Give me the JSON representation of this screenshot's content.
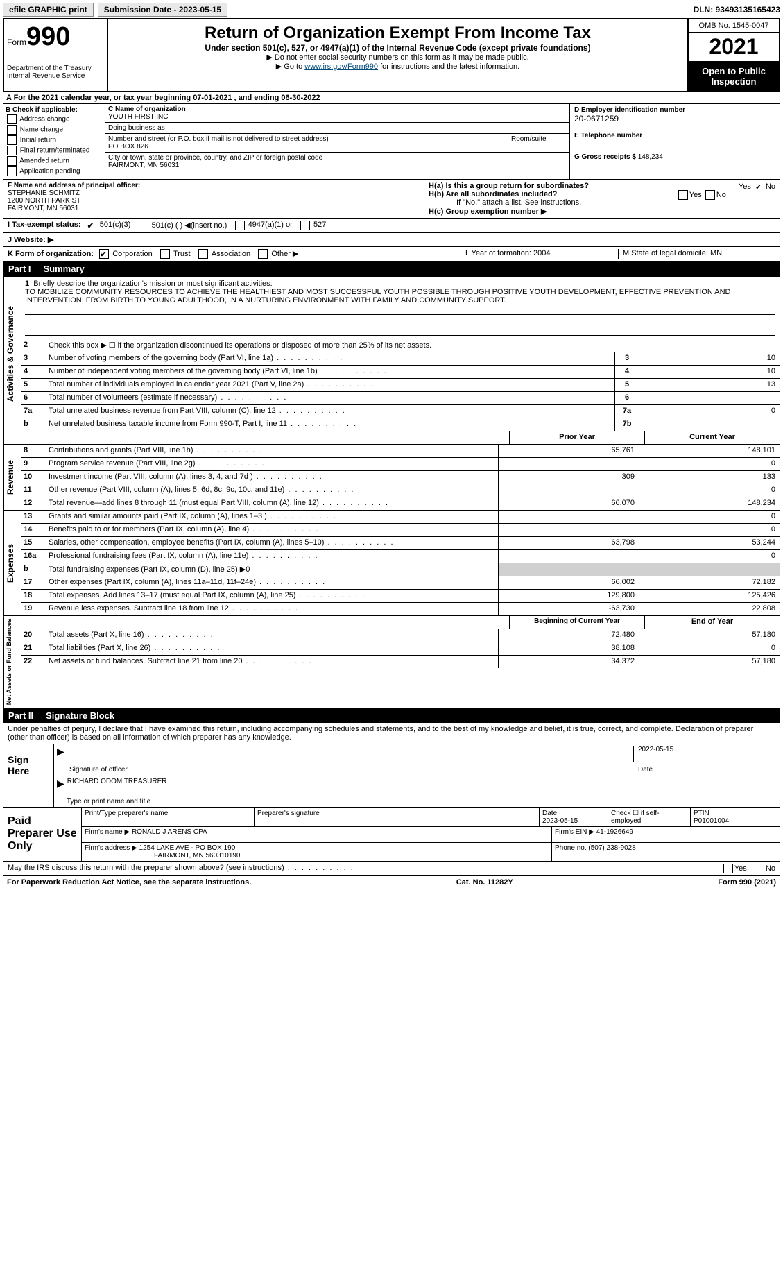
{
  "topbar": {
    "efile_label": "efile GRAPHIC print",
    "submission_label": "Submission Date - 2023-05-15",
    "dln": "DLN: 93493135165423"
  },
  "header": {
    "form_word": "Form",
    "form_number": "990",
    "dept": "Department of the Treasury",
    "irs": "Internal Revenue Service",
    "title": "Return of Organization Exempt From Income Tax",
    "subtitle": "Under section 501(c), 527, or 4947(a)(1) of the Internal Revenue Code (except private foundations)",
    "note1": "▶ Do not enter social security numbers on this form as it may be made public.",
    "note2_pre": "▶ Go to ",
    "note2_link": "www.irs.gov/Form990",
    "note2_post": " for instructions and the latest information.",
    "omb": "OMB No. 1545-0047",
    "year": "2021",
    "open": "Open to Public Inspection"
  },
  "section_a": "A For the 2021 calendar year, or tax year beginning 07-01-2021   , and ending 06-30-2022",
  "section_b": {
    "label": "B Check if applicable:",
    "items": [
      "Address change",
      "Name change",
      "Initial return",
      "Final return/terminated",
      "Amended return",
      "Application pending"
    ]
  },
  "section_c": {
    "name_label": "C Name of organization",
    "name": "YOUTH FIRST INC",
    "dba_label": "Doing business as",
    "dba": "",
    "addr_label": "Number and street (or P.O. box if mail is not delivered to street address)",
    "room_label": "Room/suite",
    "addr": "PO BOX 826",
    "city_label": "City or town, state or province, country, and ZIP or foreign postal code",
    "city": "FAIRMONT, MN  56031"
  },
  "section_d": {
    "label": "D Employer identification number",
    "ein": "20-0671259",
    "tel_label": "E Telephone number",
    "tel": "",
    "gross_label": "G Gross receipts $",
    "gross": "148,234"
  },
  "section_f": {
    "label": "F Name and address of principal officer:",
    "name": "STEPHANIE SCHMITZ",
    "addr1": "1200 NORTH PARK ST",
    "addr2": "FAIRMONT, MN  56031"
  },
  "section_h": {
    "a_label": "H(a)  Is this a group return for subordinates?",
    "a_yes": "Yes",
    "a_no": "No",
    "b_label": "H(b)  Are all subordinates included?",
    "b_yes": "Yes",
    "b_no": "No",
    "b_note": "If \"No,\" attach a list. See instructions.",
    "c_label": "H(c)  Group exemption number ▶"
  },
  "section_i": {
    "label": "I  Tax-exempt status:",
    "opt1": "501(c)(3)",
    "opt2": "501(c) (  ) ◀(insert no.)",
    "opt3": "4947(a)(1) or",
    "opt4": "527"
  },
  "section_j": "J  Website: ▶",
  "section_k": {
    "label": "K Form of organization:",
    "opts": [
      "Corporation",
      "Trust",
      "Association",
      "Other ▶"
    ]
  },
  "section_lm": {
    "l": "L Year of formation: 2004",
    "m": "M State of legal domicile: MN"
  },
  "part1": {
    "tag": "Part I",
    "title": "Summary"
  },
  "governance": {
    "side": "Activities & Governance",
    "l1_label": "Briefly describe the organization's mission or most significant activities:",
    "l1_text": "TO MOBILIZE COMMUNITY RESOURCES TO ACHIEVE THE HEALTHIEST AND MOST SUCCESSFUL YOUTH POSSIBLE THROUGH POSITIVE YOUTH DEVELOPMENT, EFFECTIVE PREVENTION AND INTERVENTION, FROM BIRTH TO YOUNG ADULTHOOD, IN A NURTURING ENVIRONMENT WITH FAMILY AND COMMUNITY SUPPORT.",
    "l2": "Check this box ▶ ☐ if the organization discontinued its operations or disposed of more than 25% of its net assets.",
    "rows": [
      {
        "n": "3",
        "d": "Number of voting members of the governing body (Part VI, line 1a)",
        "box": "3",
        "v": "10"
      },
      {
        "n": "4",
        "d": "Number of independent voting members of the governing body (Part VI, line 1b)",
        "box": "4",
        "v": "10"
      },
      {
        "n": "5",
        "d": "Total number of individuals employed in calendar year 2021 (Part V, line 2a)",
        "box": "5",
        "v": "13"
      },
      {
        "n": "6",
        "d": "Total number of volunteers (estimate if necessary)",
        "box": "6",
        "v": ""
      },
      {
        "n": "7a",
        "d": "Total unrelated business revenue from Part VIII, column (C), line 12",
        "box": "7a",
        "v": "0"
      },
      {
        "n": "b",
        "d": "Net unrelated business taxable income from Form 990-T, Part I, line 11",
        "box": "7b",
        "v": ""
      }
    ]
  },
  "yearhdr": {
    "prior": "Prior Year",
    "current": "Current Year"
  },
  "revenue": {
    "side": "Revenue",
    "rows": [
      {
        "n": "8",
        "d": "Contributions and grants (Part VIII, line 1h)",
        "p": "65,761",
        "c": "148,101"
      },
      {
        "n": "9",
        "d": "Program service revenue (Part VIII, line 2g)",
        "p": "",
        "c": "0"
      },
      {
        "n": "10",
        "d": "Investment income (Part VIII, column (A), lines 3, 4, and 7d )",
        "p": "309",
        "c": "133"
      },
      {
        "n": "11",
        "d": "Other revenue (Part VIII, column (A), lines 5, 6d, 8c, 9c, 10c, and 11e)",
        "p": "",
        "c": "0"
      },
      {
        "n": "12",
        "d": "Total revenue—add lines 8 through 11 (must equal Part VIII, column (A), line 12)",
        "p": "66,070",
        "c": "148,234"
      }
    ]
  },
  "expenses": {
    "side": "Expenses",
    "rows": [
      {
        "n": "13",
        "d": "Grants and similar amounts paid (Part IX, column (A), lines 1–3 )",
        "p": "",
        "c": "0"
      },
      {
        "n": "14",
        "d": "Benefits paid to or for members (Part IX, column (A), line 4)",
        "p": "",
        "c": "0"
      },
      {
        "n": "15",
        "d": "Salaries, other compensation, employee benefits (Part IX, column (A), lines 5–10)",
        "p": "63,798",
        "c": "53,244"
      },
      {
        "n": "16a",
        "d": "Professional fundraising fees (Part IX, column (A), line 11e)",
        "p": "",
        "c": "0"
      },
      {
        "n": "b",
        "d": "Total fundraising expenses (Part IX, column (D), line 25) ▶0",
        "p": "SHADE",
        "c": "SHADE"
      },
      {
        "n": "17",
        "d": "Other expenses (Part IX, column (A), lines 11a–11d, 11f–24e)",
        "p": "66,002",
        "c": "72,182"
      },
      {
        "n": "18",
        "d": "Total expenses. Add lines 13–17 (must equal Part IX, column (A), line 25)",
        "p": "129,800",
        "c": "125,426"
      },
      {
        "n": "19",
        "d": "Revenue less expenses. Subtract line 18 from line 12",
        "p": "-63,730",
        "c": "22,808"
      }
    ]
  },
  "netassets": {
    "side": "Net Assets or Fund Balances",
    "hdr_p": "Beginning of Current Year",
    "hdr_c": "End of Year",
    "rows": [
      {
        "n": "20",
        "d": "Total assets (Part X, line 16)",
        "p": "72,480",
        "c": "57,180"
      },
      {
        "n": "21",
        "d": "Total liabilities (Part X, line 26)",
        "p": "38,108",
        "c": "0"
      },
      {
        "n": "22",
        "d": "Net assets or fund balances. Subtract line 21 from line 20",
        "p": "34,372",
        "c": "57,180"
      }
    ]
  },
  "part2": {
    "tag": "Part II",
    "title": "Signature Block"
  },
  "penalties": "Under penalties of perjury, I declare that I have examined this return, including accompanying schedules and statements, and to the best of my knowledge and belief, it is true, correct, and complete. Declaration of preparer (other than officer) is based on all information of which preparer has any knowledge.",
  "sign": {
    "label": "Sign Here",
    "date": "2022-05-15",
    "sig_label": "Signature of officer",
    "date_label": "Date",
    "name": "RICHARD ODOM TREASURER",
    "name_label": "Type or print name and title"
  },
  "preparer": {
    "label": "Paid Preparer Use Only",
    "h1": "Print/Type preparer's name",
    "h2": "Preparer's signature",
    "h3": "Date",
    "h4": "Check ☐ if self-employed",
    "h5": "PTIN",
    "date": "2023-05-15",
    "ptin": "P01001004",
    "firm_label": "Firm's name    ▶",
    "firm": "RONALD J ARENS CPA",
    "ein_label": "Firm's EIN ▶",
    "ein": "41-1926649",
    "addr_label": "Firm's address ▶",
    "addr1": "1254 LAKE AVE - PO BOX 190",
    "addr2": "FAIRMONT, MN  560310190",
    "phone_label": "Phone no.",
    "phone": "(507) 238-9028"
  },
  "discuss": {
    "q": "May the IRS discuss this return with the preparer shown above? (see instructions)",
    "yes": "Yes",
    "no": "No"
  },
  "footer": {
    "left": "For Paperwork Reduction Act Notice, see the separate instructions.",
    "mid": "Cat. No. 11282Y",
    "right": "Form 990 (2021)"
  }
}
